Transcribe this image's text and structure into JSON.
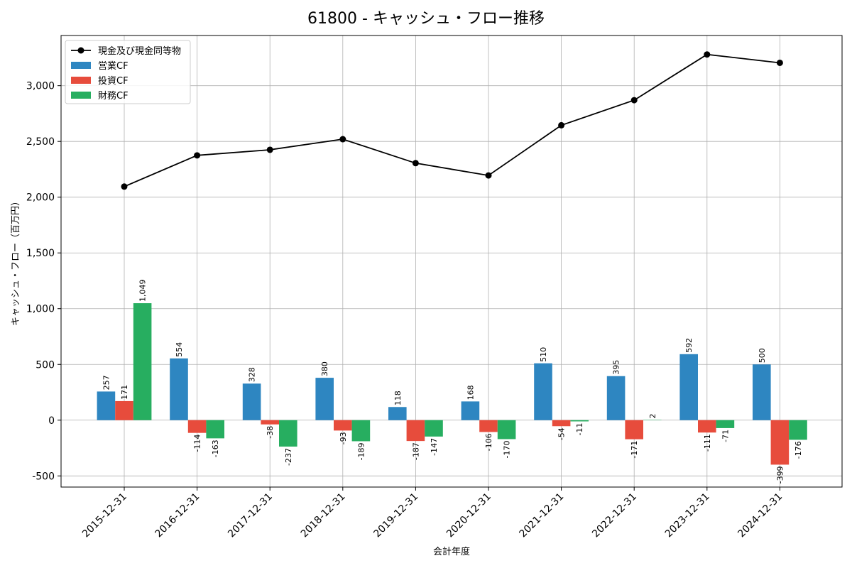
{
  "chart_data": {
    "type": "bar+line",
    "title": "61800 - キャッシュ・フロー推移",
    "xlabel": "会計年度",
    "ylabel": "キャッシュ・フロー（百万円）",
    "ylim": [
      -600,
      3450
    ],
    "yticks": [
      -500,
      0,
      500,
      1000,
      1500,
      2000,
      2500,
      3000
    ],
    "ytick_labels": [
      "-500",
      "0",
      "500",
      "1,000",
      "1,500",
      "2,000",
      "2,500",
      "3,000"
    ],
    "grid": true,
    "legend_position": "top-left",
    "categories": [
      "2015-12-31",
      "2016-12-31",
      "2017-12-31",
      "2018-12-31",
      "2019-12-31",
      "2020-12-31",
      "2021-12-31",
      "2022-12-31",
      "2023-12-31",
      "2024-12-31"
    ],
    "line": {
      "name": "現金及び現金同等物",
      "color": "#000000",
      "values": [
        2095,
        2375,
        2425,
        2520,
        2305,
        2195,
        2645,
        2870,
        3280,
        3205
      ]
    },
    "series": [
      {
        "name": "営業CF",
        "color": "#2e86c1",
        "values": [
          257,
          554,
          328,
          380,
          118,
          168,
          510,
          395,
          592,
          500
        ],
        "labels": [
          "257",
          "554",
          "328",
          "380",
          "118",
          "168",
          "510",
          "395",
          "592",
          "500"
        ]
      },
      {
        "name": "投資CF",
        "color": "#e74c3c",
        "values": [
          171,
          -114,
          -38,
          -93,
          -187,
          -106,
          -54,
          -171,
          -111,
          -399
        ],
        "labels": [
          "171",
          "-114",
          "-38",
          "-93",
          "-187",
          "-106",
          "-54",
          "-171",
          "-111",
          "-399"
        ]
      },
      {
        "name": "財務CF",
        "color": "#27ae60",
        "values": [
          1049,
          -163,
          -237,
          -189,
          -147,
          -170,
          -11,
          2,
          -71,
          -176
        ],
        "labels": [
          "1,049",
          "-163",
          "-237",
          "-189",
          "-147",
          "-170",
          "-11",
          "2",
          "-71",
          "-176"
        ]
      }
    ]
  }
}
